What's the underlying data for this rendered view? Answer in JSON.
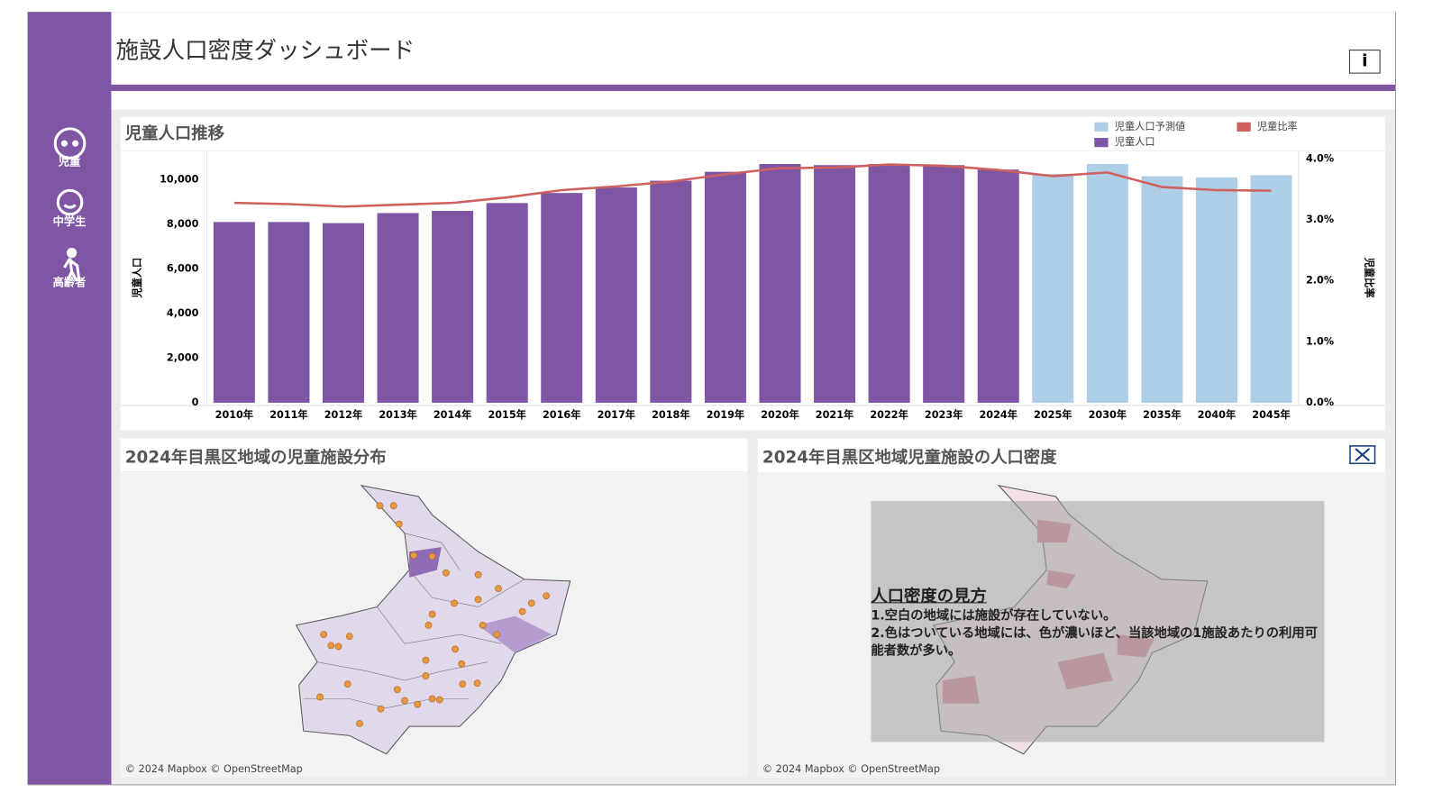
{
  "header": {
    "title": "施設人口密度ダッシュボード",
    "info_button": "i"
  },
  "sidebar": {
    "items": [
      "児童",
      "中学生",
      "高齢者"
    ]
  },
  "chart_data": {
    "type": "bar-line",
    "title": "児童人口推移",
    "y_label": "児童人口",
    "y2_label": "児童比率",
    "categories": [
      "2010年",
      "2011年",
      "2012年",
      "2013年",
      "2014年",
      "2015年",
      "2016年",
      "2017年",
      "2018年",
      "2019年",
      "2020年",
      "2021年",
      "2022年",
      "2023年",
      "2024年",
      "2025年",
      "2030年",
      "2035年",
      "2040年",
      "2045年"
    ],
    "series": [
      {
        "name": "児童人口予測値",
        "kind": "bar",
        "color": "#aecde6",
        "values": [
          null,
          null,
          null,
          null,
          null,
          null,
          null,
          null,
          null,
          null,
          null,
          null,
          null,
          null,
          null,
          10250,
          10700,
          10150,
          10100,
          10200
        ]
      },
      {
        "name": "児童比率",
        "kind": "line",
        "axis": "y2",
        "color": "#d0605e",
        "values": [
          3.28,
          3.26,
          3.22,
          3.25,
          3.28,
          3.37,
          3.49,
          3.55,
          3.63,
          3.75,
          3.85,
          3.86,
          3.91,
          3.89,
          3.82,
          3.72,
          3.78,
          3.54,
          3.49,
          3.48
        ]
      },
      {
        "name": "児童人口",
        "kind": "bar",
        "color": "#7f56a4",
        "values": [
          8100,
          8100,
          8050,
          8500,
          8600,
          8950,
          9400,
          9650,
          9950,
          10350,
          10700,
          10650,
          10700,
          10650,
          10450,
          null,
          null,
          null,
          null,
          null
        ]
      }
    ],
    "ylim": [
      0,
      11250
    ],
    "yticks": [
      0,
      {
        "value": 2000,
        "label": "2,000"
      },
      {
        "value": 4000,
        "label": "4,000"
      },
      {
        "value": 6000,
        "label": "6,000"
      },
      {
        "value": 8000,
        "label": "8,000"
      },
      {
        "value": 10000,
        "label": "10,000"
      }
    ],
    "y2lim": [
      0,
      4.12
    ],
    "y2ticks": [
      {
        "value": 0,
        "label": "0.0%"
      },
      {
        "value": 1,
        "label": "1.0%"
      },
      {
        "value": 2,
        "label": "2.0%"
      },
      {
        "value": 3,
        "label": "3.0%"
      },
      {
        "value": 4,
        "label": "4.0%"
      }
    ],
    "grid": false,
    "legend": "top-right"
  },
  "maps": [
    {
      "title": "2024年目黒区地域の児童施設分布",
      "attribution": "© 2024 Mapbox © OpenStreetMap"
    },
    {
      "title": "2024年目黒区地域児童施設の人口密度",
      "attribution": "© 2024 Mapbox © OpenStreetMap",
      "overlay": {
        "heading": "人口密度の見方",
        "lines": [
          "1.空白の地域には施設が存在していない。",
          "2.色はついている地域には、色が濃いほど、当該地域の1施設あたりの利用可能者数が多い。"
        ]
      }
    }
  ]
}
